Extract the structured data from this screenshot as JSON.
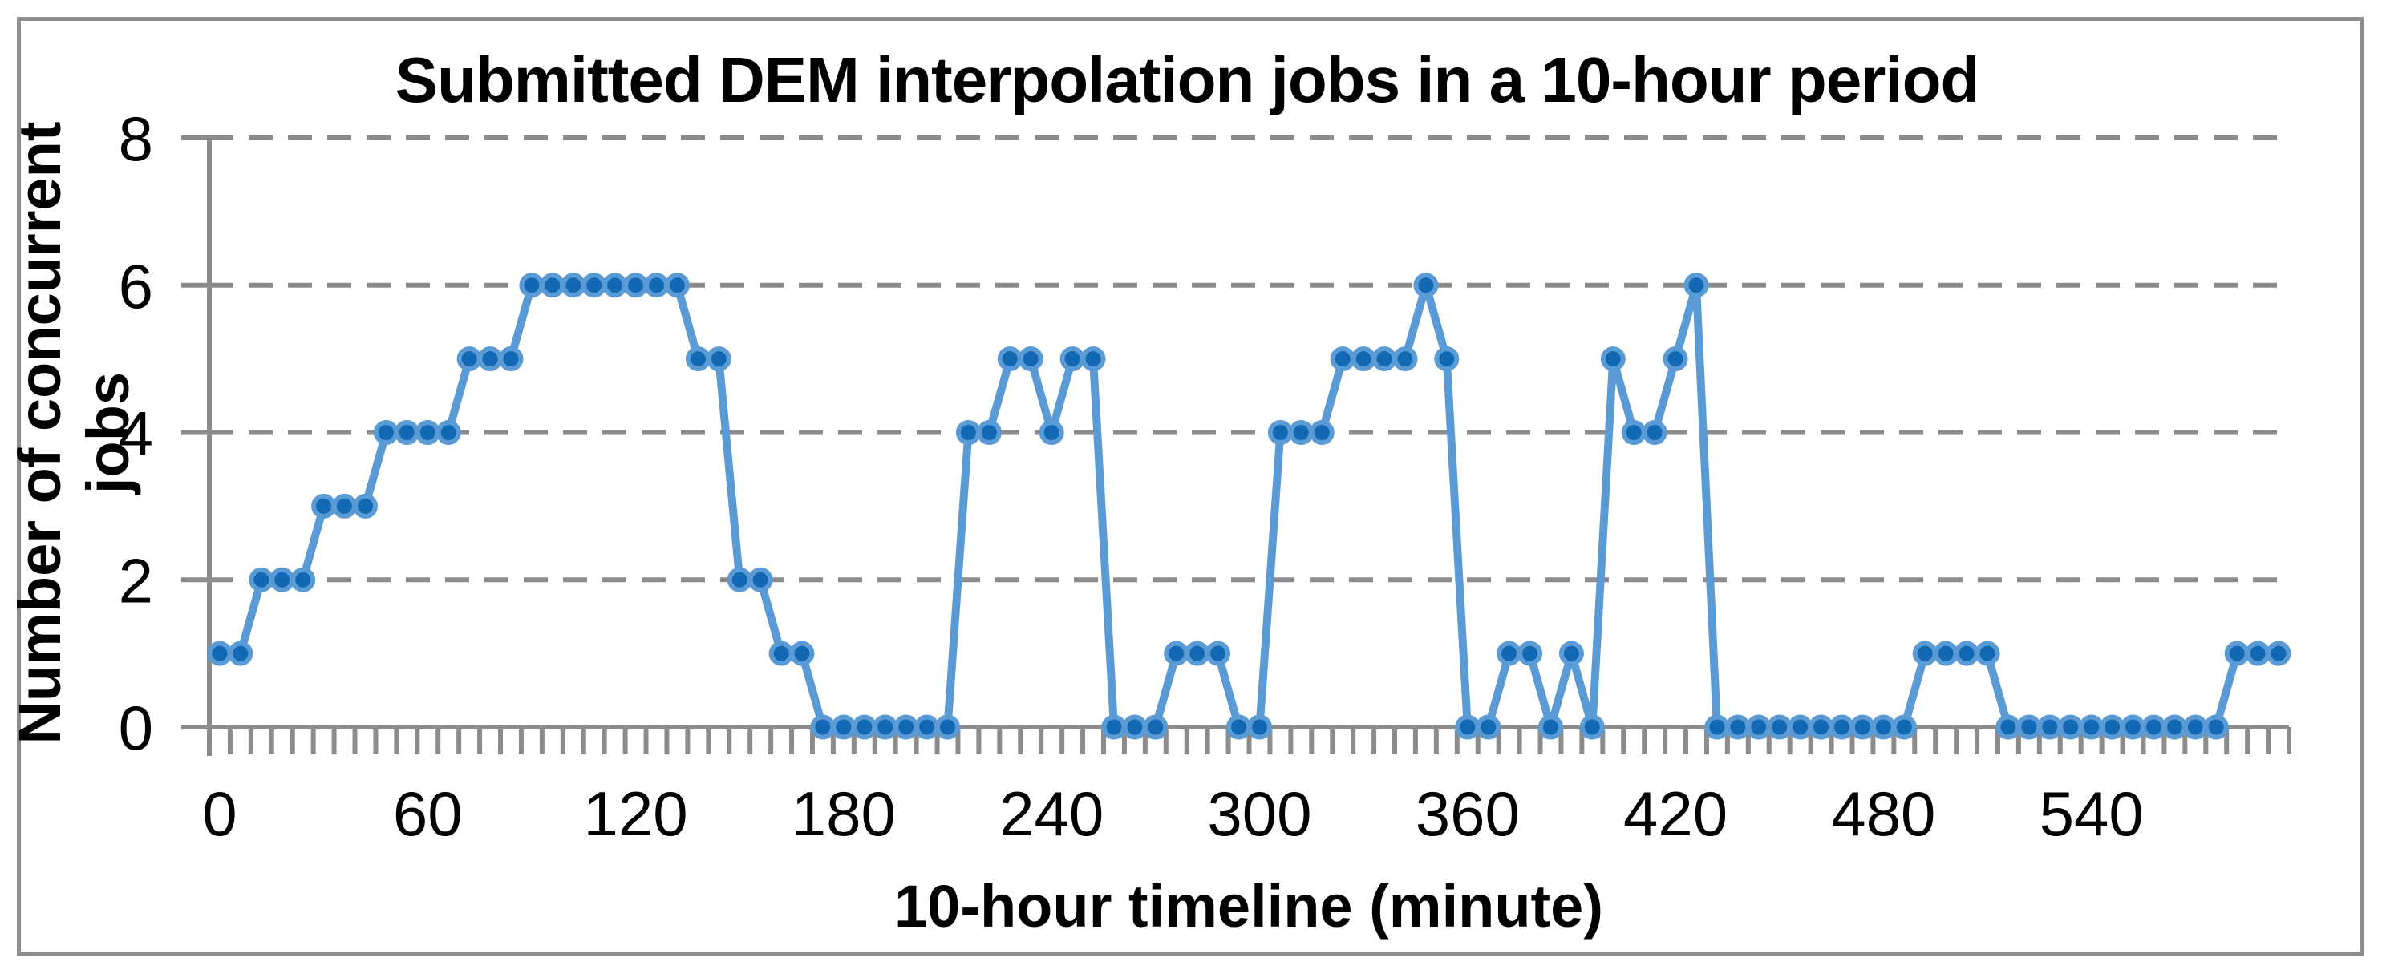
{
  "chart_data": {
    "type": "line",
    "title": "Submitted DEM interpolation jobs in a 10-hour period",
    "xlabel": "10-hour timeline (minute)",
    "ylabel": "Number of concurrent jobs",
    "x_start_minute": 0,
    "x_step_minutes": 6,
    "values": [
      1,
      1,
      2,
      2,
      2,
      3,
      3,
      3,
      4,
      4,
      4,
      4,
      5,
      5,
      5,
      6,
      6,
      6,
      6,
      6,
      6,
      6,
      6,
      5,
      5,
      2,
      2,
      1,
      1,
      0,
      0,
      0,
      0,
      0,
      0,
      0,
      4,
      4,
      5,
      5,
      4,
      5,
      5,
      0,
      0,
      0,
      1,
      1,
      1,
      0,
      0,
      4,
      4,
      4,
      5,
      5,
      5,
      5,
      6,
      5,
      0,
      0,
      1,
      1,
      0,
      1,
      0,
      5,
      4,
      4,
      5,
      6,
      0,
      0,
      0,
      0,
      0,
      0,
      0,
      0,
      0,
      0,
      1,
      1,
      1,
      1,
      0,
      0,
      0,
      0,
      0,
      0,
      0,
      0,
      0,
      0,
      0,
      1,
      1,
      1
    ],
    "x_tick_labels": [
      0,
      60,
      120,
      180,
      240,
      300,
      360,
      420,
      480,
      540
    ],
    "y_ticks": [
      0,
      2,
      4,
      6,
      8
    ],
    "ylim": [
      0,
      8
    ],
    "grid": "dashed horizontal",
    "legend": "none",
    "colors": {
      "line": "#5b9bd5",
      "marker_fill": "#1268b3",
      "marker_edge": "#5b9bd5",
      "grid": "#8c8c8c",
      "axis": "#8c8c8c",
      "text": "#000000",
      "border": "#8c8c8c"
    }
  }
}
